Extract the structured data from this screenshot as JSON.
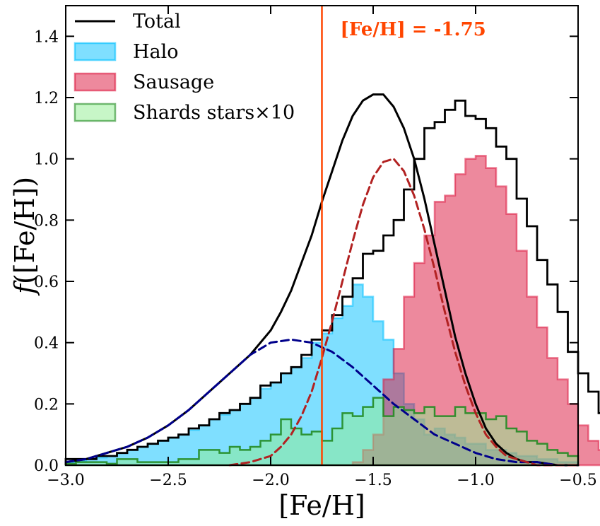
{
  "chart_data": {
    "type": "histogram",
    "xlabel": "[Fe/H]",
    "ylabel_italic": "f",
    "ylabel_rest": "([Fe/H])",
    "xlim": [
      -3.0,
      -0.5
    ],
    "ylim": [
      0.0,
      1.5
    ],
    "xticks": [
      -3.0,
      -2.5,
      -2.0,
      -1.5,
      -1.0,
      -0.5
    ],
    "xtick_labels": [
      "−3.0",
      "−2.5",
      "−2.0",
      "−1.5",
      "−1.0",
      "−0.5"
    ],
    "yticks": [
      0.0,
      0.2,
      0.4,
      0.6,
      0.8,
      1.0,
      1.2,
      1.4
    ],
    "ytick_labels": [
      "0.0",
      "0.2",
      "0.4",
      "0.6",
      "0.8",
      "1.0",
      "1.2",
      "1.4"
    ],
    "legend": {
      "placement": "top-left",
      "entries": [
        {
          "label": "Total",
          "kind": "line",
          "color": "#000000"
        },
        {
          "label": "Halo",
          "kind": "patch",
          "color": "#00bfff",
          "edge": "#00bfff"
        },
        {
          "label": "Sausage",
          "kind": "patch",
          "color": "#dc143c",
          "edge": "#dc143c"
        },
        {
          "label": "Shards stars×10",
          "kind": "patch",
          "color": "#90ee90",
          "edge": "#228b22"
        }
      ]
    },
    "annotation": {
      "text": "[Fe/H] = -1.75",
      "x": -1.75,
      "color": "#ff4500"
    },
    "bin_width": 0.05,
    "bin_start": -3.0,
    "series": [
      {
        "name": "Halo",
        "style": "fill",
        "fill": "#00bfff",
        "fill_opacity": 0.5,
        "stroke": "#00bfff",
        "stroke_opacity": 0.55,
        "values": [
          0.01,
          0.015,
          0.02,
          0.025,
          0.03,
          0.04,
          0.05,
          0.06,
          0.07,
          0.08,
          0.09,
          0.1,
          0.115,
          0.13,
          0.15,
          0.165,
          0.18,
          0.2,
          0.22,
          0.25,
          0.27,
          0.3,
          0.32,
          0.35,
          0.4,
          0.43,
          0.48,
          0.52,
          0.59,
          0.55,
          0.47,
          0.41,
          0.3,
          0.2,
          0.15,
          0.1,
          0.12,
          0.1,
          0.09,
          0.07,
          0.07,
          0.05,
          0.05,
          0.04,
          0.03,
          0.03,
          0.02,
          0.02,
          0.01,
          0.01
        ]
      },
      {
        "name": "Sausage",
        "style": "fill",
        "fill": "#dc143c",
        "fill_opacity": 0.5,
        "stroke": "#dc143c",
        "stroke_opacity": 0.55,
        "values": [
          0,
          0,
          0,
          0,
          0,
          0,
          0,
          0,
          0,
          0,
          0,
          0,
          0,
          0,
          0,
          0,
          0,
          0,
          0,
          0,
          0,
          0,
          0,
          0,
          0,
          0,
          0,
          0,
          0.01,
          0.05,
          0.1,
          0.28,
          0.38,
          0.55,
          0.66,
          0.75,
          0.86,
          0.88,
          0.95,
          1.0,
          1.01,
          0.97,
          0.91,
          0.82,
          0.7,
          0.55,
          0.45,
          0.35,
          0.28,
          0.2,
          0.13,
          0.08,
          0.05,
          0.03
        ]
      },
      {
        "name": "Shards",
        "style": "fill",
        "fill": "#90ee90",
        "fill_opacity": 0.5,
        "stroke": "#228b22",
        "stroke_opacity": 0.9,
        "values": [
          0.005,
          0.01,
          0.01,
          0.01,
          0.005,
          0.02,
          0.02,
          0.01,
          0.01,
          0.01,
          0.01,
          0.02,
          0.02,
          0.05,
          0.05,
          0.04,
          0.06,
          0.05,
          0.06,
          0.08,
          0.1,
          0.15,
          0.12,
          0.1,
          0.11,
          0.08,
          0.12,
          0.17,
          0.16,
          0.19,
          0.22,
          0.16,
          0.19,
          0.18,
          0.17,
          0.19,
          0.16,
          0.16,
          0.19,
          0.17,
          0.17,
          0.15,
          0.16,
          0.12,
          0.11,
          0.08,
          0.07,
          0.05,
          0.04,
          0.03
        ]
      },
      {
        "name": "Total",
        "style": "step",
        "stroke": "#000000",
        "values": [
          0.02,
          0.02,
          0.02,
          0.03,
          0.03,
          0.04,
          0.05,
          0.06,
          0.07,
          0.08,
          0.09,
          0.1,
          0.12,
          0.13,
          0.15,
          0.17,
          0.18,
          0.2,
          0.22,
          0.26,
          0.27,
          0.3,
          0.32,
          0.36,
          0.41,
          0.44,
          0.49,
          0.55,
          0.61,
          0.69,
          0.7,
          0.75,
          0.8,
          0.9,
          1.0,
          1.1,
          1.12,
          1.16,
          1.19,
          1.14,
          1.13,
          1.1,
          1.04,
          1.0,
          0.87,
          0.78,
          0.67,
          0.59,
          0.5,
          0.37,
          0.3,
          0.24,
          0.17,
          0.12,
          0.07,
          0.04,
          0.03,
          0.03,
          0.02,
          0.02
        ]
      },
      {
        "name": "Total",
        "style": "curve",
        "stroke": "#000000",
        "dash": false,
        "x": [
          -3.0,
          -2.9,
          -2.8,
          -2.7,
          -2.6,
          -2.5,
          -2.4,
          -2.3,
          -2.2,
          -2.1,
          -2.0,
          -1.95,
          -1.9,
          -1.85,
          -1.8,
          -1.75,
          -1.7,
          -1.65,
          -1.6,
          -1.55,
          -1.5,
          -1.45,
          -1.4,
          -1.35,
          -1.3,
          -1.25,
          -1.2,
          -1.15,
          -1.1,
          -1.05,
          -1.0,
          -0.95,
          -0.9,
          -0.85,
          -0.8,
          -0.75,
          -0.7,
          -0.6,
          -0.5
        ],
        "y": [
          0.01,
          0.02,
          0.04,
          0.06,
          0.09,
          0.13,
          0.18,
          0.24,
          0.3,
          0.36,
          0.44,
          0.5,
          0.57,
          0.66,
          0.75,
          0.86,
          0.96,
          1.06,
          1.14,
          1.19,
          1.21,
          1.21,
          1.17,
          1.1,
          1.0,
          0.87,
          0.72,
          0.57,
          0.42,
          0.3,
          0.2,
          0.12,
          0.07,
          0.04,
          0.02,
          0.01,
          0.01,
          0.0,
          0.0
        ]
      },
      {
        "name": "Halo",
        "style": "curve",
        "stroke": "#00008b",
        "dash": true,
        "x": [
          -3.0,
          -2.9,
          -2.8,
          -2.7,
          -2.6,
          -2.5,
          -2.4,
          -2.3,
          -2.2,
          -2.1,
          -2.0,
          -1.9,
          -1.8,
          -1.7,
          -1.6,
          -1.5,
          -1.4,
          -1.3,
          -1.2,
          -1.1,
          -1.0,
          -0.9,
          -0.8,
          -0.7,
          -0.6,
          -0.5
        ],
        "y": [
          0.01,
          0.02,
          0.04,
          0.06,
          0.09,
          0.13,
          0.18,
          0.24,
          0.3,
          0.36,
          0.4,
          0.41,
          0.4,
          0.37,
          0.32,
          0.26,
          0.2,
          0.15,
          0.1,
          0.07,
          0.04,
          0.02,
          0.01,
          0.01,
          0.0,
          0.0
        ]
      },
      {
        "name": "Sausage",
        "style": "curve",
        "stroke": "#b22222",
        "dash": true,
        "x": [
          -2.2,
          -2.1,
          -2.0,
          -1.95,
          -1.9,
          -1.85,
          -1.8,
          -1.75,
          -1.7,
          -1.65,
          -1.6,
          -1.55,
          -1.5,
          -1.45,
          -1.4,
          -1.35,
          -1.3,
          -1.25,
          -1.2,
          -1.15,
          -1.1,
          -1.05,
          -1.0,
          -0.95,
          -0.9,
          -0.85,
          -0.8,
          -0.75,
          -0.7,
          -0.6,
          -0.5
        ],
        "y": [
          0.0,
          0.01,
          0.03,
          0.06,
          0.1,
          0.16,
          0.24,
          0.35,
          0.47,
          0.6,
          0.73,
          0.85,
          0.94,
          0.99,
          1.0,
          0.96,
          0.88,
          0.77,
          0.64,
          0.5,
          0.37,
          0.26,
          0.17,
          0.1,
          0.06,
          0.03,
          0.02,
          0.01,
          0.0,
          0.0,
          0.0
        ]
      }
    ],
    "colors": {
      "vline": "#ff4500",
      "axes": "#000000"
    }
  }
}
